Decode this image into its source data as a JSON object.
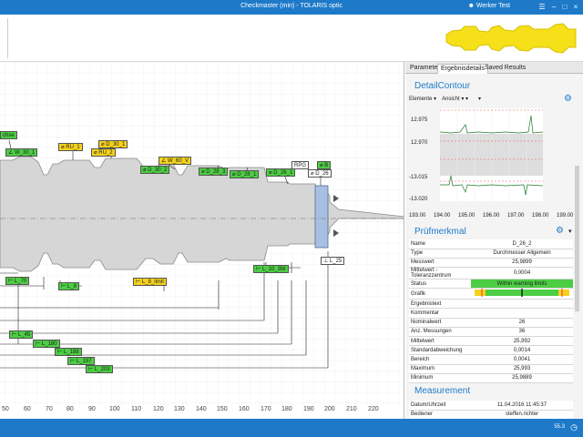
{
  "titlebar": {
    "title": "Checkmaster (min) - TOLARIS optic",
    "user": "Werker Test"
  },
  "tabs": [
    "Parameter",
    "Ergebnisdetails",
    "Saved Results"
  ],
  "detail": {
    "title": "DetailContour",
    "dropdowns": [
      "Elemente",
      "Ansicht"
    ],
    "y_ticks": [
      "12.975",
      "12.970",
      "-13.015",
      "-13.020"
    ],
    "x_ticks": [
      "193.00",
      "194.00",
      "195.00",
      "196.00",
      "197.00",
      "198.00",
      "199.00"
    ]
  },
  "pruef": {
    "title": "Prüfmerkmal",
    "rows": [
      {
        "label": "Name",
        "value": "D_26_2"
      },
      {
        "label": "Type",
        "value": "Durchmesser Allgemein"
      },
      {
        "label": "Messwert",
        "value": "25,9899"
      },
      {
        "label": "Mittelwert - Toleranzzentrum",
        "value": "0,0004"
      },
      {
        "label": "Status",
        "value": "Within warning limits"
      },
      {
        "label": "Grafik",
        "value": ""
      },
      {
        "label": "Ergebnistext",
        "value": ""
      },
      {
        "label": "Kommentar",
        "value": ""
      },
      {
        "label": "Nominalwert",
        "value": "26"
      },
      {
        "label": "Anz. Messungen",
        "value": "36"
      },
      {
        "label": "Mittelwert",
        "value": "25,992"
      },
      {
        "label": "Standardabweichung",
        "value": "0,0014"
      },
      {
        "label": "Bereich",
        "value": "0,0041"
      },
      {
        "label": "Maximum",
        "value": "25,993"
      },
      {
        "label": "Minimum",
        "value": "25,9889"
      }
    ]
  },
  "measurement": {
    "title": "Measurement",
    "rows": [
      {
        "label": "Datum/Uhrzeit",
        "value": "11.04.2016 11:45:37"
      },
      {
        "label": "Bediener",
        "value": "steffen.richter"
      }
    ]
  },
  "canvas": {
    "x_ticks": [
      "50",
      "60",
      "70",
      "80",
      "90",
      "100",
      "110",
      "120",
      "130",
      "140",
      "150",
      "160",
      "170",
      "180",
      "190",
      "200",
      "210",
      "220"
    ],
    "chips_top": [
      {
        "id": "c1",
        "text": "chse",
        "cls": "g"
      },
      {
        "id": "c2",
        "text": "W_30_1",
        "cls": "g"
      },
      {
        "id": "c3",
        "text": "RU_1",
        "cls": "y"
      },
      {
        "id": "c4",
        "text": "D_30_1",
        "cls": "y"
      },
      {
        "id": "c5",
        "text": "RU_2",
        "cls": "y"
      },
      {
        "id": "c6",
        "text": "W_60_V",
        "cls": "y"
      },
      {
        "id": "c7",
        "text": "D_30_2",
        "cls": "g"
      },
      {
        "id": "c8",
        "text": "D_28_3",
        "cls": "g"
      },
      {
        "id": "c9",
        "text": "D_28_1",
        "cls": "g"
      },
      {
        "id": "c10",
        "text": "D_26_1",
        "cls": "g"
      },
      {
        "id": "c11",
        "text": "RPG",
        "cls": "w"
      },
      {
        "id": "c12",
        "text": "D_26",
        "cls": "w"
      },
      {
        "id": "c13",
        "text": "B",
        "cls": "g"
      }
    ],
    "chips_bottom": [
      {
        "id": "b1",
        "text": "L_25",
        "cls": "w"
      },
      {
        "id": "b2",
        "text": "L_70",
        "cls": "g"
      },
      {
        "id": "b3",
        "text": "L_8",
        "cls": "g"
      },
      {
        "id": "b4",
        "text": "L_8_limit",
        "cls": "y"
      },
      {
        "id": "b5",
        "text": "L_10_3W",
        "cls": "g"
      },
      {
        "id": "b6",
        "text": "L_45",
        "cls": "g"
      },
      {
        "id": "b7",
        "text": "L_180",
        "cls": "g"
      },
      {
        "id": "b8",
        "text": "L_188",
        "cls": "g"
      },
      {
        "id": "b9",
        "text": "L_197",
        "cls": "g"
      },
      {
        "id": "b10",
        "text": "L_203",
        "cls": "g"
      }
    ]
  },
  "statusbar": {
    "value": "55.3"
  }
}
